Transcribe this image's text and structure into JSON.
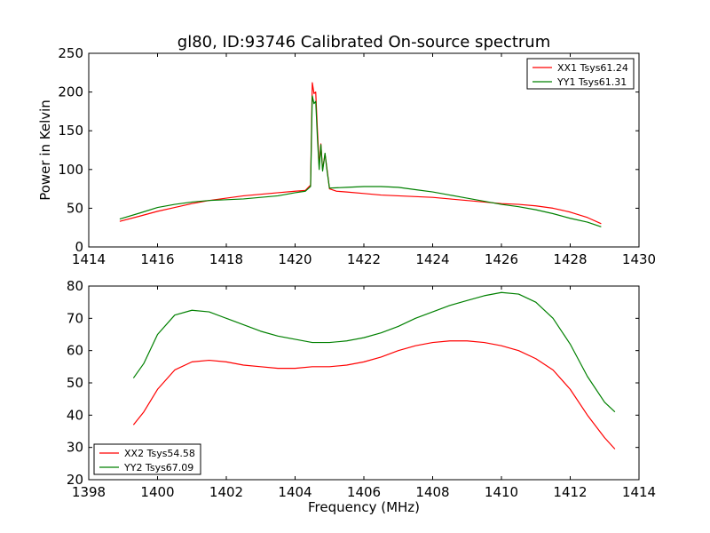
{
  "chart_data": [
    {
      "type": "line",
      "title": "gl80, ID:93746 Calibrated On-source spectrum",
      "xlabel": "",
      "ylabel": "Power in Kelvin",
      "xlim": [
        1414,
        1430
      ],
      "ylim": [
        0,
        250
      ],
      "xticks": [
        "1414",
        "1416",
        "1418",
        "1420",
        "1422",
        "1424",
        "1426",
        "1428",
        "1430"
      ],
      "yticks": [
        "0",
        "50",
        "100",
        "150",
        "200",
        "250"
      ],
      "grid": false,
      "legend_position": "top-right",
      "series": [
        {
          "name": "XX1 Tsys61.24",
          "color": "#ff0000",
          "points": [
            [
              1414.9,
              33
            ],
            [
              1415.5,
              40
            ],
            [
              1416,
              46
            ],
            [
              1416.5,
              51
            ],
            [
              1417,
              56
            ],
            [
              1417.5,
              60
            ],
            [
              1418,
              63
            ],
            [
              1418.5,
              66
            ],
            [
              1419,
              68
            ],
            [
              1419.5,
              70
            ],
            [
              1420,
              72
            ],
            [
              1420.3,
              73
            ],
            [
              1420.45,
              80
            ],
            [
              1420.5,
              212
            ],
            [
              1420.55,
              198
            ],
            [
              1420.6,
              200
            ],
            [
              1420.65,
              150
            ],
            [
              1420.7,
              105
            ],
            [
              1420.75,
              133
            ],
            [
              1420.8,
              100
            ],
            [
              1420.87,
              120
            ],
            [
              1420.93,
              100
            ],
            [
              1421,
              75
            ],
            [
              1421.2,
              72
            ],
            [
              1421.5,
              71
            ],
            [
              1422,
              69
            ],
            [
              1422.5,
              67
            ],
            [
              1423,
              66
            ],
            [
              1423.5,
              65
            ],
            [
              1424,
              64
            ],
            [
              1424.5,
              62
            ],
            [
              1425,
              60
            ],
            [
              1425.5,
              58
            ],
            [
              1426,
              56
            ],
            [
              1426.5,
              55
            ],
            [
              1427,
              53
            ],
            [
              1427.5,
              50
            ],
            [
              1428,
              45
            ],
            [
              1428.5,
              38
            ],
            [
              1428.9,
              30
            ]
          ]
        },
        {
          "name": "YY1 Tsys61.31",
          "color": "#008000",
          "points": [
            [
              1414.9,
              36
            ],
            [
              1415.5,
              44
            ],
            [
              1416,
              51
            ],
            [
              1416.5,
              55
            ],
            [
              1417,
              58
            ],
            [
              1417.5,
              60
            ],
            [
              1418,
              61
            ],
            [
              1418.5,
              62
            ],
            [
              1419,
              64
            ],
            [
              1419.5,
              66
            ],
            [
              1420,
              70
            ],
            [
              1420.3,
              72
            ],
            [
              1420.45,
              78
            ],
            [
              1420.5,
              195
            ],
            [
              1420.55,
              185
            ],
            [
              1420.6,
              188
            ],
            [
              1420.65,
              140
            ],
            [
              1420.7,
              100
            ],
            [
              1420.75,
              132
            ],
            [
              1420.8,
              98
            ],
            [
              1420.87,
              121
            ],
            [
              1420.93,
              98
            ],
            [
              1421,
              76
            ],
            [
              1421.5,
              77
            ],
            [
              1422,
              78
            ],
            [
              1422.5,
              78
            ],
            [
              1423,
              77
            ],
            [
              1423.5,
              74
            ],
            [
              1424,
              71
            ],
            [
              1424.5,
              67
            ],
            [
              1425,
              63
            ],
            [
              1425.5,
              59
            ],
            [
              1426,
              55
            ],
            [
              1426.5,
              52
            ],
            [
              1427,
              48
            ],
            [
              1427.5,
              43
            ],
            [
              1428,
              37
            ],
            [
              1428.5,
              32
            ],
            [
              1428.9,
              26
            ]
          ]
        }
      ]
    },
    {
      "type": "line",
      "title": "",
      "xlabel": "Frequency (MHz)",
      "ylabel": "",
      "xlim": [
        1398,
        1414
      ],
      "ylim": [
        20,
        80
      ],
      "xticks": [
        "1398",
        "1400",
        "1402",
        "1404",
        "1406",
        "1408",
        "1410",
        "1412",
        "1414"
      ],
      "yticks": [
        "20",
        "30",
        "40",
        "50",
        "60",
        "70",
        "80"
      ],
      "grid": false,
      "legend_position": "bottom-left",
      "series": [
        {
          "name": "XX2 Tsys54.58",
          "color": "#ff0000",
          "points": [
            [
              1399.3,
              37
            ],
            [
              1399.6,
              41
            ],
            [
              1400,
              48
            ],
            [
              1400.5,
              54
            ],
            [
              1401,
              56.5
            ],
            [
              1401.5,
              57
            ],
            [
              1402,
              56.5
            ],
            [
              1402.5,
              55.5
            ],
            [
              1403,
              55
            ],
            [
              1403.5,
              54.5
            ],
            [
              1404,
              54.5
            ],
            [
              1404.5,
              55
            ],
            [
              1405,
              55
            ],
            [
              1405.5,
              55.5
            ],
            [
              1406,
              56.5
            ],
            [
              1406.5,
              58
            ],
            [
              1407,
              60
            ],
            [
              1407.5,
              61.5
            ],
            [
              1408,
              62.5
            ],
            [
              1408.5,
              63
            ],
            [
              1409,
              63
            ],
            [
              1409.5,
              62.5
            ],
            [
              1410,
              61.5
            ],
            [
              1410.5,
              60
            ],
            [
              1411,
              57.5
            ],
            [
              1411.5,
              54
            ],
            [
              1412,
              48
            ],
            [
              1412.5,
              40
            ],
            [
              1413,
              33
            ],
            [
              1413.3,
              29.5
            ]
          ]
        },
        {
          "name": "YY2 Tsys67.09",
          "color": "#008000",
          "points": [
            [
              1399.3,
              51.5
            ],
            [
              1399.6,
              56
            ],
            [
              1400,
              65
            ],
            [
              1400.5,
              71
            ],
            [
              1401,
              72.5
            ],
            [
              1401.5,
              72
            ],
            [
              1402,
              70
            ],
            [
              1402.5,
              68
            ],
            [
              1403,
              66
            ],
            [
              1403.5,
              64.5
            ],
            [
              1404,
              63.5
            ],
            [
              1404.5,
              62.5
            ],
            [
              1405,
              62.5
            ],
            [
              1405.5,
              63
            ],
            [
              1406,
              64
            ],
            [
              1406.5,
              65.5
            ],
            [
              1407,
              67.5
            ],
            [
              1407.5,
              70
            ],
            [
              1408,
              72
            ],
            [
              1408.5,
              74
            ],
            [
              1409,
              75.5
            ],
            [
              1409.5,
              77
            ],
            [
              1410,
              78
            ],
            [
              1410.5,
              77.5
            ],
            [
              1411,
              75
            ],
            [
              1411.5,
              70
            ],
            [
              1412,
              62
            ],
            [
              1412.5,
              52
            ],
            [
              1413,
              44
            ],
            [
              1413.3,
              41
            ]
          ]
        }
      ]
    }
  ]
}
